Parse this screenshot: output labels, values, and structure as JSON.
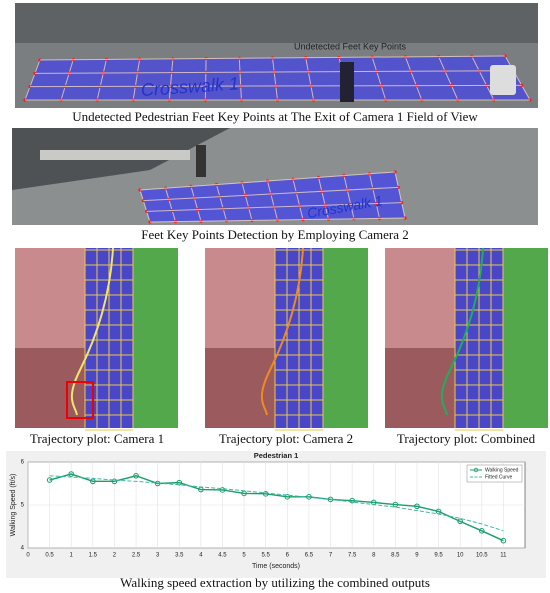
{
  "figure": {
    "captions": [
      "Undetected Pedestrian Feet Key Points at The Exit of Camera 1 Field of View",
      "Feet Key Points Detection by Employing Camera 2",
      "Trajectory plot: Camera 1",
      "Trajectory plot: Camera 2",
      "Trajectory plot: Combined",
      "Walking speed extraction by utilizing the combined outputs"
    ],
    "image_texts": {
      "undetected": "Undetected Feet Key Points",
      "crosswalk_a": "Crosswalk 1",
      "crosswalk_b": "Crosswalk 1"
    }
  },
  "chart_data": {
    "type": "line",
    "title": "Pedestrian 1",
    "xlabel": "Time (seconds)",
    "ylabel": "Walking Speed (ft/s)",
    "x": [
      0.5,
      1,
      1.5,
      2,
      2.5,
      3,
      3.5,
      4,
      4.5,
      5,
      5.5,
      6,
      6.5,
      7,
      7.5,
      8,
      8.5,
      9,
      9.5,
      10,
      10.5,
      11
    ],
    "series": [
      {
        "name": "Walking Speed",
        "color": "#1a9e6a",
        "values": [
          5.58,
          5.72,
          5.55,
          5.55,
          5.68,
          5.5,
          5.52,
          5.36,
          5.35,
          5.27,
          5.26,
          5.19,
          5.19,
          5.13,
          5.1,
          5.06,
          5.01,
          4.97,
          4.85,
          4.62,
          4.4,
          4.17
        ]
      },
      {
        "name": "Fitted Curve",
        "color": "#3fb6a8",
        "values": [
          5.68,
          5.65,
          5.62,
          5.58,
          5.55,
          5.51,
          5.47,
          5.42,
          5.38,
          5.33,
          5.28,
          5.23,
          5.18,
          5.13,
          5.07,
          5.01,
          4.95,
          4.87,
          4.79,
          4.69,
          4.56,
          4.4
        ]
      }
    ],
    "xlim": [
      0,
      11.5
    ],
    "ylim": [
      4,
      6
    ],
    "xticks": [
      0,
      0.5,
      1,
      1.5,
      2,
      2.5,
      3,
      3.5,
      4,
      4.5,
      5,
      5.5,
      6,
      6.5,
      7,
      7.5,
      8,
      8.5,
      9,
      9.5,
      10,
      10.5,
      11
    ],
    "yticks": [
      4,
      5,
      6
    ],
    "grid": true,
    "legend": "upper right"
  }
}
